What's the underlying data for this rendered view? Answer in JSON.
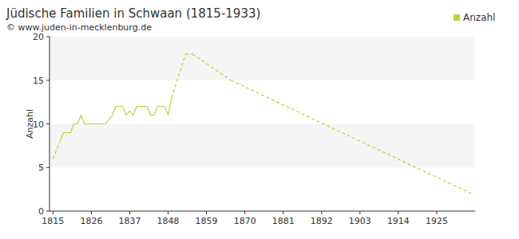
{
  "chart_data": {
    "type": "line",
    "title": "Jüdische Familien in Schwaan (1815-1933)",
    "subtitle": "© www.juden-in-mecklenburg.de",
    "y_label": "Anzahl",
    "x": [
      1815,
      1817,
      1818,
      1819,
      1820,
      1821,
      1822,
      1823,
      1824,
      1825,
      1826,
      1827,
      1828,
      1829,
      1830,
      1831,
      1832,
      1833,
      1834,
      1835,
      1836,
      1837,
      1838,
      1839,
      1840,
      1841,
      1842,
      1843,
      1844,
      1845,
      1846,
      1847,
      1848,
      1849,
      1853,
      1855,
      1866,
      1935
    ],
    "series": [
      {
        "name": "Anzahl",
        "color": "#b5d63a",
        "values": [
          6,
          8,
          9,
          9,
          9,
          10,
          10,
          11,
          10,
          10,
          10,
          10,
          10,
          10,
          10,
          10.5,
          11,
          12,
          12,
          12,
          11,
          11.5,
          11,
          12,
          12,
          12,
          12,
          11,
          11,
          12,
          12,
          12,
          11,
          13,
          18,
          18,
          15,
          2
        ]
      }
    ],
    "xlim": [
      1814,
      1936
    ],
    "xticks": [
      1815,
      1826,
      1837,
      1848,
      1859,
      1870,
      1881,
      1892,
      1903,
      1914,
      1925
    ],
    "ylim": [
      0,
      20
    ],
    "yticks": [
      0,
      5,
      10,
      15,
      20
    ],
    "grid": true,
    "legend": "top-right"
  }
}
